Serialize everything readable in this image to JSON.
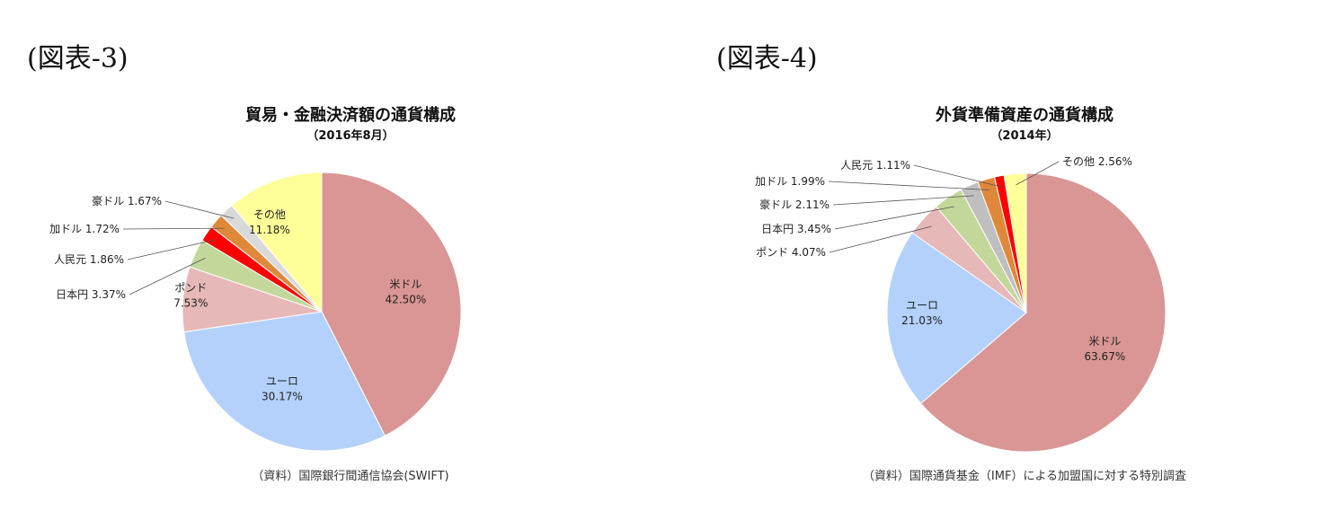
{
  "figures": [
    {
      "label": "(図表-3)"
    },
    {
      "label": "(図表-4)"
    }
  ],
  "chart_data": [
    {
      "type": "pie",
      "title": "貿易・金融決済額の通貨構成",
      "subtitle": "（2016年8月）",
      "source": "（資料）国際銀行間通信協会(SWIFT)",
      "slices": [
        {
          "name": "米ドル",
          "value": 42.5,
          "value_label": "42.50%",
          "color": "#d99694"
        },
        {
          "name": "ユーロ",
          "value": 30.17,
          "value_label": "30.17%",
          "color": "#b3d1fb"
        },
        {
          "name": "ポンド",
          "value": 7.53,
          "value_label": "7.53%",
          "color": "#e6b8b7"
        },
        {
          "name": "日本円",
          "value": 3.37,
          "value_label": "3.37%",
          "color": "#c4d79b"
        },
        {
          "name": "人民元",
          "value": 1.86,
          "value_label": "1.86%",
          "color": "#ff0000"
        },
        {
          "name": "加ドル",
          "value": 1.72,
          "value_label": "1.72%",
          "color": "#e0883a"
        },
        {
          "name": "豪ドル",
          "value": 1.67,
          "value_label": "1.67%",
          "color": "#d9d9d9"
        },
        {
          "name": "その他",
          "value": 11.18,
          "value_label": "11.18%",
          "color": "#ffff99"
        }
      ]
    },
    {
      "type": "pie",
      "title": "外貨準備資産の通貨構成",
      "subtitle": "（2014年）",
      "source": "（資料）国際通貨基金（IMF）による加盟国に対する特別調査",
      "slices": [
        {
          "name": "米ドル",
          "value": 63.67,
          "value_label": "63.67%",
          "color": "#d99694"
        },
        {
          "name": "ユーロ",
          "value": 21.03,
          "value_label": "21.03%",
          "color": "#b3d1fb"
        },
        {
          "name": "ポンド",
          "value": 4.07,
          "value_label": "4.07%",
          "color": "#e6b8b7"
        },
        {
          "name": "日本円",
          "value": 3.45,
          "value_label": "3.45%",
          "color": "#c4d79b"
        },
        {
          "name": "豪ドル",
          "value": 2.11,
          "value_label": "2.11%",
          "color": "#bfbfbf"
        },
        {
          "name": "加ドル",
          "value": 1.99,
          "value_label": "1.99%",
          "color": "#e0883a"
        },
        {
          "name": "人民元",
          "value": 1.11,
          "value_label": "1.11%",
          "color": "#ff0000"
        },
        {
          "name": "その他",
          "value": 2.56,
          "value_label": "2.56%",
          "color": "#ffff99"
        }
      ]
    }
  ]
}
